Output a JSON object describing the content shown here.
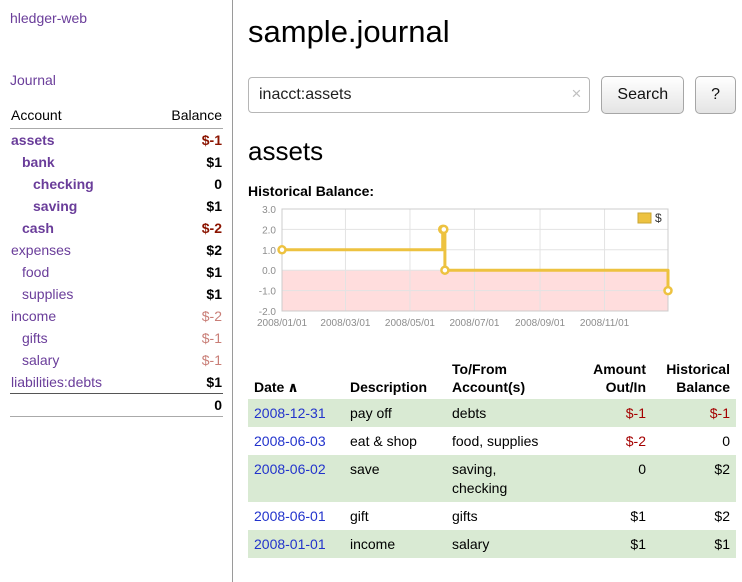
{
  "theme": {
    "purple": "#6a3d9a",
    "link_blue": "#2233cc",
    "negative_strong": "#8b1400",
    "negative_table": "#a40000",
    "negative_soft": "#c97e77",
    "row_green": "#d9ead3",
    "chart_line": "#edc240",
    "chart_below_zero": "#ffdddd",
    "sidebar_border": "#9a9a9a"
  },
  "sidebar": {
    "app_title": "hledger-web",
    "journal_label": "Journal",
    "accounts_table": {
      "headers": {
        "account": "Account",
        "balance": "Balance"
      },
      "rows": [
        {
          "name": "assets",
          "depth": 0,
          "balance": "$-1",
          "bold": true,
          "neg": "strong"
        },
        {
          "name": "bank",
          "depth": 1,
          "balance": "$1",
          "bold": true,
          "neg": "none"
        },
        {
          "name": "checking",
          "depth": 2,
          "balance": "0",
          "bold": true,
          "neg": "none"
        },
        {
          "name": "saving",
          "depth": 2,
          "balance": "$1",
          "bold": true,
          "neg": "none"
        },
        {
          "name": "cash",
          "depth": 1,
          "balance": "$-2",
          "bold": true,
          "neg": "strong"
        },
        {
          "name": "expenses",
          "depth": 0,
          "balance": "$2",
          "bold": false,
          "neg": "none"
        },
        {
          "name": "food",
          "depth": 1,
          "balance": "$1",
          "bold": false,
          "neg": "none"
        },
        {
          "name": "supplies",
          "depth": 1,
          "balance": "$1",
          "bold": false,
          "neg": "none"
        },
        {
          "name": "income",
          "depth": 0,
          "balance": "$-2",
          "bold": false,
          "neg": "soft"
        },
        {
          "name": "gifts",
          "depth": 1,
          "balance": "$-1",
          "bold": false,
          "neg": "soft"
        },
        {
          "name": "salary",
          "depth": 1,
          "balance": "$-1",
          "bold": false,
          "neg": "soft"
        },
        {
          "name": "liabilities:debts",
          "depth": 0,
          "balance": "$1",
          "bold": false,
          "neg": "none"
        }
      ],
      "total": "0"
    }
  },
  "main": {
    "title": "sample.journal",
    "search": {
      "value": "inacct:assets",
      "clear_icon": "×",
      "button_label": "Search",
      "help_label": "?"
    },
    "section_title": "assets",
    "chart_label": "Historical Balance:"
  },
  "chart_data": {
    "type": "line",
    "step": true,
    "title": "Historical Balance",
    "xlim": [
      "2008-01-01",
      "2008-12-31"
    ],
    "ylim": [
      -2,
      3
    ],
    "yticks": [
      3,
      2,
      1,
      0,
      -1,
      -2
    ],
    "xticks": [
      {
        "date": "2008-01-01",
        "label": "2008/01/01"
      },
      {
        "date": "2008-03-01",
        "label": "2008/03/01"
      },
      {
        "date": "2008-05-01",
        "label": "2008/05/01"
      },
      {
        "date": "2008-07-01",
        "label": "2008/07/01"
      },
      {
        "date": "2008-09-01",
        "label": "2008/09/01"
      },
      {
        "date": "2008-11-01",
        "label": "2008/11/01"
      }
    ],
    "series": [
      {
        "name": "$",
        "points": [
          [
            "2008-01-01",
            1
          ],
          [
            "2008-06-01",
            2
          ],
          [
            "2008-06-02",
            2
          ],
          [
            "2008-06-03",
            0
          ],
          [
            "2008-12-31",
            -1
          ]
        ]
      }
    ],
    "legend_position": "top-right",
    "grid": true
  },
  "transactions": {
    "headers": {
      "date": "Date",
      "sort_icon": "∧",
      "description": "Description",
      "accounts": "To/From\nAccount(s)",
      "amount": "Amount\nOut/In",
      "balance": "Historical\nBalance"
    },
    "rows": [
      {
        "date": "2008-12-31",
        "description": "pay off",
        "accounts": "debts",
        "amount": "$-1",
        "balance": "$-1"
      },
      {
        "date": "2008-06-03",
        "description": "eat & shop",
        "accounts": "food, supplies",
        "amount": "$-2",
        "balance": "0"
      },
      {
        "date": "2008-06-02",
        "description": "save",
        "accounts": "saving,\nchecking",
        "amount": "0",
        "balance": "$2"
      },
      {
        "date": "2008-06-01",
        "description": "gift",
        "accounts": "gifts",
        "amount": "$1",
        "balance": "$2"
      },
      {
        "date": "2008-01-01",
        "description": "income",
        "accounts": "salary",
        "amount": "$1",
        "balance": "$1"
      }
    ]
  }
}
